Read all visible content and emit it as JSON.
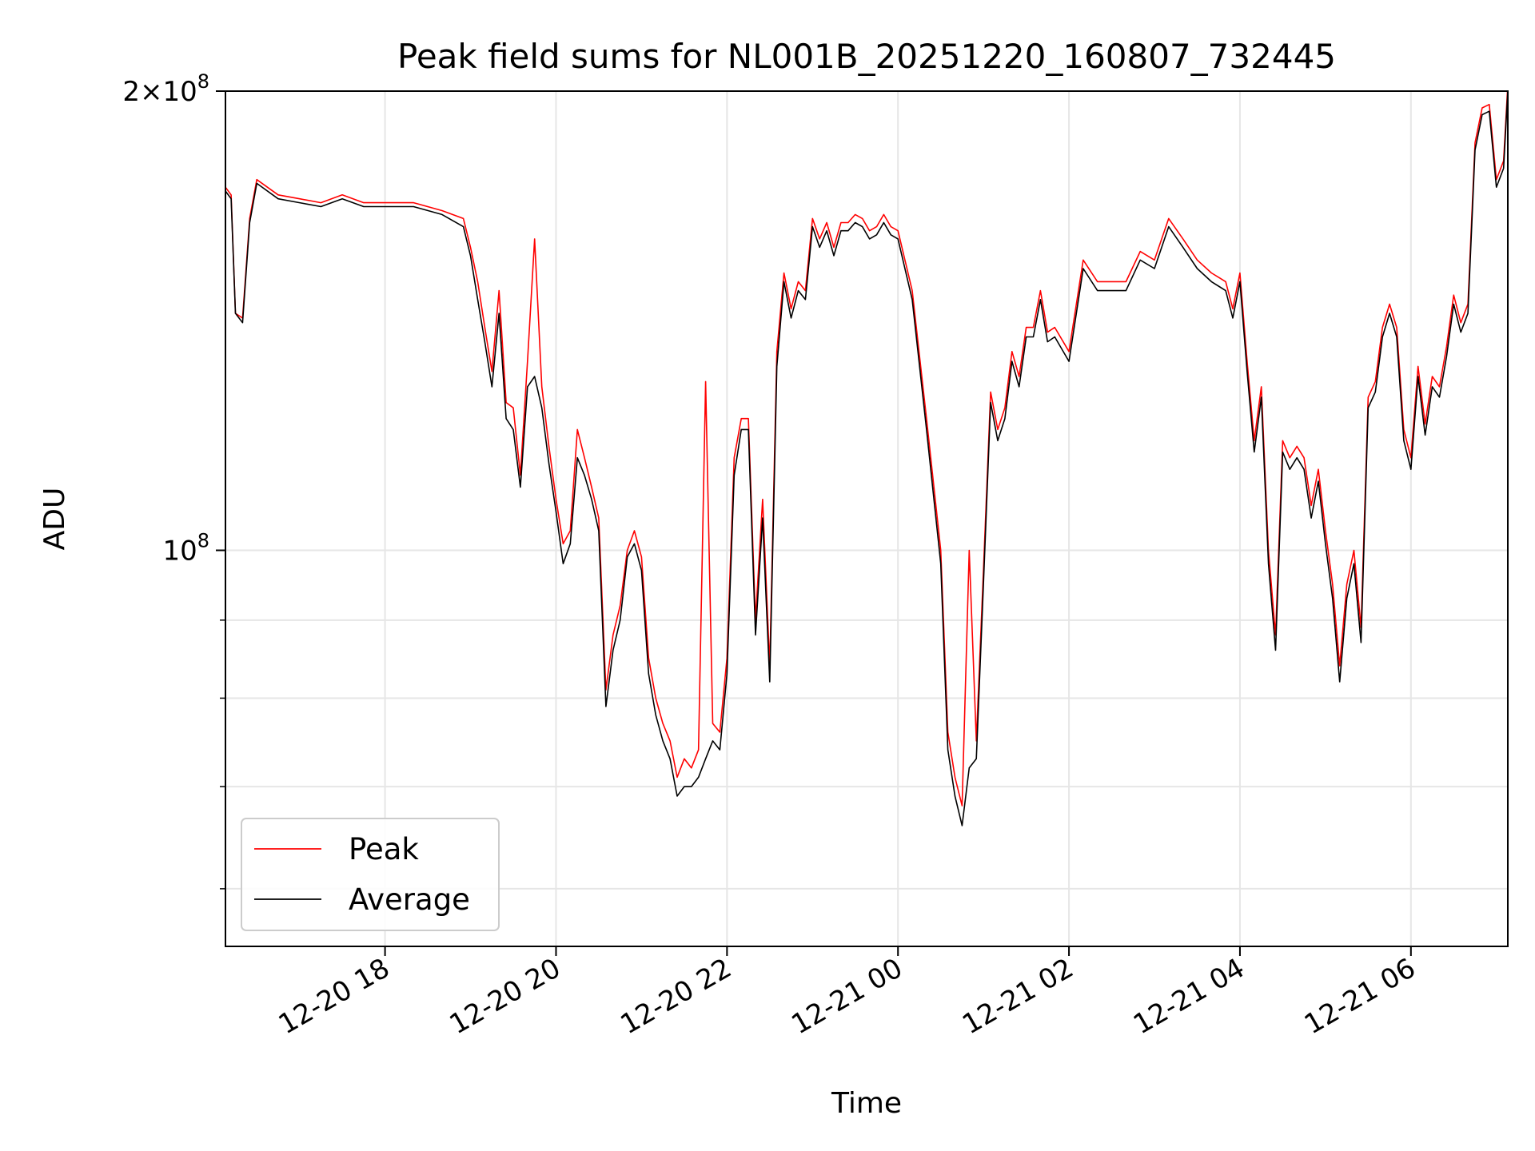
{
  "chart_data": {
    "type": "line",
    "title": "Peak field sums for NL001B_20251220_160807_732445",
    "xlabel": "Time",
    "ylabel": "ADU",
    "yscale": "log",
    "xlim": [
      "2025-12-20 16:08",
      "2025-12-21 07:08"
    ],
    "ylim": [
      55000000,
      200000000
    ],
    "grid": true,
    "legend_location": "lower-left",
    "x_ticks": [
      {
        "time": "2025-12-20 18:00",
        "label": "12-20 18"
      },
      {
        "time": "2025-12-20 20:00",
        "label": "12-20 20"
      },
      {
        "time": "2025-12-20 22:00",
        "label": "12-20 22"
      },
      {
        "time": "2025-12-21 00:00",
        "label": "12-21 00"
      },
      {
        "time": "2025-12-21 02:00",
        "label": "12-21 02"
      },
      {
        "time": "2025-12-21 04:00",
        "label": "12-21 04"
      },
      {
        "time": "2025-12-21 06:00",
        "label": "12-21 06"
      }
    ],
    "y_ticks_major": [
      {
        "value": 100000000,
        "label_base": "10",
        "label_exp": "8"
      },
      {
        "value": 200000000,
        "label_base": "2×10",
        "label_exp": "8"
      }
    ],
    "y_ticks_minor": [
      60000000,
      70000000,
      80000000,
      90000000
    ],
    "series": [
      {
        "name": "Peak",
        "color": "#ff0000",
        "x": [
          "2025-12-20 16:08",
          "2025-12-20 16:12",
          "2025-12-20 16:15",
          "2025-12-20 16:20",
          "2025-12-20 16:25",
          "2025-12-20 16:30",
          "2025-12-20 16:45",
          "2025-12-20 17:00",
          "2025-12-20 17:15",
          "2025-12-20 17:30",
          "2025-12-20 17:45",
          "2025-12-20 18:00",
          "2025-12-20 18:20",
          "2025-12-20 18:40",
          "2025-12-20 18:55",
          "2025-12-20 19:00",
          "2025-12-20 19:05",
          "2025-12-20 19:10",
          "2025-12-20 19:15",
          "2025-12-20 19:20",
          "2025-12-20 19:25",
          "2025-12-20 19:30",
          "2025-12-20 19:35",
          "2025-12-20 19:40",
          "2025-12-20 19:45",
          "2025-12-20 19:50",
          "2025-12-20 19:55",
          "2025-12-20 20:00",
          "2025-12-20 20:05",
          "2025-12-20 20:10",
          "2025-12-20 20:15",
          "2025-12-20 20:20",
          "2025-12-20 20:25",
          "2025-12-20 20:30",
          "2025-12-20 20:35",
          "2025-12-20 20:40",
          "2025-12-20 20:45",
          "2025-12-20 20:50",
          "2025-12-20 20:55",
          "2025-12-20 21:00",
          "2025-12-20 21:05",
          "2025-12-20 21:10",
          "2025-12-20 21:15",
          "2025-12-20 21:20",
          "2025-12-20 21:25",
          "2025-12-20 21:30",
          "2025-12-20 21:35",
          "2025-12-20 21:40",
          "2025-12-20 21:45",
          "2025-12-20 21:50",
          "2025-12-20 21:55",
          "2025-12-20 22:00",
          "2025-12-20 22:05",
          "2025-12-20 22:10",
          "2025-12-20 22:15",
          "2025-12-20 22:20",
          "2025-12-20 22:25",
          "2025-12-20 22:30",
          "2025-12-20 22:35",
          "2025-12-20 22:40",
          "2025-12-20 22:45",
          "2025-12-20 22:50",
          "2025-12-20 22:55",
          "2025-12-20 23:00",
          "2025-12-20 23:05",
          "2025-12-20 23:10",
          "2025-12-20 23:15",
          "2025-12-20 23:20",
          "2025-12-20 23:25",
          "2025-12-20 23:30",
          "2025-12-20 23:35",
          "2025-12-20 23:40",
          "2025-12-20 23:45",
          "2025-12-20 23:50",
          "2025-12-20 23:55",
          "2025-12-21 00:00",
          "2025-12-21 00:10",
          "2025-12-21 00:20",
          "2025-12-21 00:30",
          "2025-12-21 00:35",
          "2025-12-21 00:40",
          "2025-12-21 00:45",
          "2025-12-21 00:50",
          "2025-12-21 00:55",
          "2025-12-21 01:00",
          "2025-12-21 01:05",
          "2025-12-21 01:10",
          "2025-12-21 01:15",
          "2025-12-21 01:20",
          "2025-12-21 01:25",
          "2025-12-21 01:30",
          "2025-12-21 01:35",
          "2025-12-21 01:40",
          "2025-12-21 01:45",
          "2025-12-21 01:50",
          "2025-12-21 02:00",
          "2025-12-21 02:10",
          "2025-12-21 02:20",
          "2025-12-21 02:30",
          "2025-12-21 02:40",
          "2025-12-21 02:50",
          "2025-12-21 03:00",
          "2025-12-21 03:10",
          "2025-12-21 03:20",
          "2025-12-21 03:30",
          "2025-12-21 03:40",
          "2025-12-21 03:50",
          "2025-12-21 03:55",
          "2025-12-21 04:00",
          "2025-12-21 04:05",
          "2025-12-21 04:10",
          "2025-12-21 04:15",
          "2025-12-21 04:20",
          "2025-12-21 04:25",
          "2025-12-21 04:30",
          "2025-12-21 04:35",
          "2025-12-21 04:40",
          "2025-12-21 04:45",
          "2025-12-21 04:50",
          "2025-12-21 04:55",
          "2025-12-21 05:00",
          "2025-12-21 05:05",
          "2025-12-21 05:10",
          "2025-12-21 05:15",
          "2025-12-21 05:20",
          "2025-12-21 05:25",
          "2025-12-21 05:30",
          "2025-12-21 05:35",
          "2025-12-21 05:40",
          "2025-12-21 05:45",
          "2025-12-21 05:50",
          "2025-12-21 05:55",
          "2025-12-21 06:00",
          "2025-12-21 06:05",
          "2025-12-21 06:10",
          "2025-12-21 06:15",
          "2025-12-21 06:20",
          "2025-12-21 06:25",
          "2025-12-21 06:30",
          "2025-12-21 06:35",
          "2025-12-21 06:40",
          "2025-12-21 06:45",
          "2025-12-21 06:50",
          "2025-12-21 06:55",
          "2025-12-21 07:00",
          "2025-12-21 07:05",
          "2025-12-21 07:08"
        ],
        "y": [
          173000000,
          171000000,
          143000000,
          142000000,
          165000000,
          175000000,
          171000000,
          170000000,
          169000000,
          171000000,
          169000000,
          169000000,
          169000000,
          167000000,
          165000000,
          158000000,
          150000000,
          140000000,
          131000000,
          148000000,
          125000000,
          124000000,
          112000000,
          133000000,
          160000000,
          128000000,
          117000000,
          108000000,
          101000000,
          103000000,
          120000000,
          115000000,
          110000000,
          105000000,
          81000000,
          88000000,
          92000000,
          100000000,
          103000000,
          99000000,
          85000000,
          80000000,
          77000000,
          75000000,
          71000000,
          73000000,
          72000000,
          74000000,
          129000000,
          77000000,
          76000000,
          85000000,
          115000000,
          122000000,
          122000000,
          90000000,
          108000000,
          84000000,
          135000000,
          152000000,
          144000000,
          150000000,
          148000000,
          165000000,
          160000000,
          164000000,
          158000000,
          164000000,
          164000000,
          166000000,
          165000000,
          162000000,
          163000000,
          166000000,
          163000000,
          162000000,
          148000000,
          122000000,
          100000000,
          76000000,
          71000000,
          68000000,
          100000000,
          75000000,
          97000000,
          127000000,
          120000000,
          124000000,
          135000000,
          130000000,
          140000000,
          140000000,
          148000000,
          139000000,
          140000000,
          135000000,
          155000000,
          150000000,
          150000000,
          150000000,
          157000000,
          155000000,
          165000000,
          160000000,
          155000000,
          152000000,
          150000000,
          144000000,
          152000000,
          133000000,
          118000000,
          128000000,
          100000000,
          88000000,
          118000000,
          115000000,
          117000000,
          115000000,
          107000000,
          113000000,
          103000000,
          95000000,
          84000000,
          95000000,
          100000000,
          89000000,
          126000000,
          129000000,
          140000000,
          145000000,
          140000000,
          120000000,
          115000000,
          132000000,
          121000000,
          130000000,
          128000000,
          136000000,
          147000000,
          141000000,
          145000000,
          185000000,
          195000000,
          196000000,
          175000000,
          180000000,
          202000000
        ]
      },
      {
        "name": "Average",
        "color": "#000000",
        "x": [
          "2025-12-20 16:08",
          "2025-12-20 16:12",
          "2025-12-20 16:15",
          "2025-12-20 16:20",
          "2025-12-20 16:25",
          "2025-12-20 16:30",
          "2025-12-20 16:45",
          "2025-12-20 17:00",
          "2025-12-20 17:15",
          "2025-12-20 17:30",
          "2025-12-20 17:45",
          "2025-12-20 18:00",
          "2025-12-20 18:20",
          "2025-12-20 18:40",
          "2025-12-20 18:55",
          "2025-12-20 19:00",
          "2025-12-20 19:05",
          "2025-12-20 19:10",
          "2025-12-20 19:15",
          "2025-12-20 19:20",
          "2025-12-20 19:25",
          "2025-12-20 19:30",
          "2025-12-20 19:35",
          "2025-12-20 19:40",
          "2025-12-20 19:45",
          "2025-12-20 19:50",
          "2025-12-20 19:55",
          "2025-12-20 20:00",
          "2025-12-20 20:05",
          "2025-12-20 20:10",
          "2025-12-20 20:15",
          "2025-12-20 20:20",
          "2025-12-20 20:25",
          "2025-12-20 20:30",
          "2025-12-20 20:35",
          "2025-12-20 20:40",
          "2025-12-20 20:45",
          "2025-12-20 20:50",
          "2025-12-20 20:55",
          "2025-12-20 21:00",
          "2025-12-20 21:05",
          "2025-12-20 21:10",
          "2025-12-20 21:15",
          "2025-12-20 21:20",
          "2025-12-20 21:25",
          "2025-12-20 21:30",
          "2025-12-20 21:35",
          "2025-12-20 21:40",
          "2025-12-20 21:45",
          "2025-12-20 21:50",
          "2025-12-20 21:55",
          "2025-12-20 22:00",
          "2025-12-20 22:05",
          "2025-12-20 22:10",
          "2025-12-20 22:15",
          "2025-12-20 22:20",
          "2025-12-20 22:25",
          "2025-12-20 22:30",
          "2025-12-20 22:35",
          "2025-12-20 22:40",
          "2025-12-20 22:45",
          "2025-12-20 22:50",
          "2025-12-20 22:55",
          "2025-12-20 23:00",
          "2025-12-20 23:05",
          "2025-12-20 23:10",
          "2025-12-20 23:15",
          "2025-12-20 23:20",
          "2025-12-20 23:25",
          "2025-12-20 23:30",
          "2025-12-20 23:35",
          "2025-12-20 23:40",
          "2025-12-20 23:45",
          "2025-12-20 23:50",
          "2025-12-20 23:55",
          "2025-12-21 00:00",
          "2025-12-21 00:10",
          "2025-12-21 00:20",
          "2025-12-21 00:30",
          "2025-12-21 00:35",
          "2025-12-21 00:40",
          "2025-12-21 00:45",
          "2025-12-21 00:50",
          "2025-12-21 00:55",
          "2025-12-21 01:00",
          "2025-12-21 01:05",
          "2025-12-21 01:10",
          "2025-12-21 01:15",
          "2025-12-21 01:20",
          "2025-12-21 01:25",
          "2025-12-21 01:30",
          "2025-12-21 01:35",
          "2025-12-21 01:40",
          "2025-12-21 01:45",
          "2025-12-21 01:50",
          "2025-12-21 02:00",
          "2025-12-21 02:10",
          "2025-12-21 02:20",
          "2025-12-21 02:30",
          "2025-12-21 02:40",
          "2025-12-21 02:50",
          "2025-12-21 03:00",
          "2025-12-21 03:10",
          "2025-12-21 03:20",
          "2025-12-21 03:30",
          "2025-12-21 03:40",
          "2025-12-21 03:50",
          "2025-12-21 03:55",
          "2025-12-21 04:00",
          "2025-12-21 04:05",
          "2025-12-21 04:10",
          "2025-12-21 04:15",
          "2025-12-21 04:20",
          "2025-12-21 04:25",
          "2025-12-21 04:30",
          "2025-12-21 04:35",
          "2025-12-21 04:40",
          "2025-12-21 04:45",
          "2025-12-21 04:50",
          "2025-12-21 04:55",
          "2025-12-21 05:00",
          "2025-12-21 05:05",
          "2025-12-21 05:10",
          "2025-12-21 05:15",
          "2025-12-21 05:20",
          "2025-12-21 05:25",
          "2025-12-21 05:30",
          "2025-12-21 05:35",
          "2025-12-21 05:40",
          "2025-12-21 05:45",
          "2025-12-21 05:50",
          "2025-12-21 05:55",
          "2025-12-21 06:00",
          "2025-12-21 06:05",
          "2025-12-21 06:10",
          "2025-12-21 06:15",
          "2025-12-21 06:20",
          "2025-12-21 06:25",
          "2025-12-21 06:30",
          "2025-12-21 06:35",
          "2025-12-21 06:40",
          "2025-12-21 06:45",
          "2025-12-21 06:50",
          "2025-12-21 06:55",
          "2025-12-21 07:00",
          "2025-12-21 07:05",
          "2025-12-21 07:08"
        ],
        "y": [
          172000000,
          170000000,
          143000000,
          141000000,
          164000000,
          174000000,
          170000000,
          169000000,
          168000000,
          170000000,
          168000000,
          168000000,
          168000000,
          166000000,
          163000000,
          156000000,
          146000000,
          137000000,
          128000000,
          143000000,
          122000000,
          120000000,
          110000000,
          128000000,
          130000000,
          124000000,
          114000000,
          106000000,
          98000000,
          101000000,
          115000000,
          112000000,
          108000000,
          103000000,
          79000000,
          86000000,
          90000000,
          99000000,
          101000000,
          97000000,
          83000000,
          78000000,
          75000000,
          73000000,
          69000000,
          70000000,
          70000000,
          71000000,
          73000000,
          75000000,
          74000000,
          83000000,
          112000000,
          120000000,
          120000000,
          88000000,
          105000000,
          82000000,
          132000000,
          150000000,
          142000000,
          148000000,
          146000000,
          163000000,
          158000000,
          162000000,
          156000000,
          162000000,
          162000000,
          164000000,
          163000000,
          160000000,
          161000000,
          164000000,
          161000000,
          160000000,
          146000000,
          120000000,
          98000000,
          74000000,
          69000000,
          66000000,
          72000000,
          73000000,
          95000000,
          125000000,
          118000000,
          122000000,
          133000000,
          128000000,
          138000000,
          138000000,
          146000000,
          137000000,
          138000000,
          133000000,
          153000000,
          148000000,
          148000000,
          148000000,
          155000000,
          153000000,
          163000000,
          158000000,
          153000000,
          150000000,
          148000000,
          142000000,
          150000000,
          131000000,
          116000000,
          126000000,
          98000000,
          86000000,
          116000000,
          113000000,
          115000000,
          113000000,
          105000000,
          111000000,
          101000000,
          93000000,
          82000000,
          93000000,
          98000000,
          87000000,
          124000000,
          127000000,
          138000000,
          143000000,
          138000000,
          118000000,
          113000000,
          130000000,
          119000000,
          128000000,
          126000000,
          134000000,
          145000000,
          139000000,
          143000000,
          183000000,
          193000000,
          194000000,
          173000000,
          178000000,
          200000000
        ]
      }
    ]
  }
}
